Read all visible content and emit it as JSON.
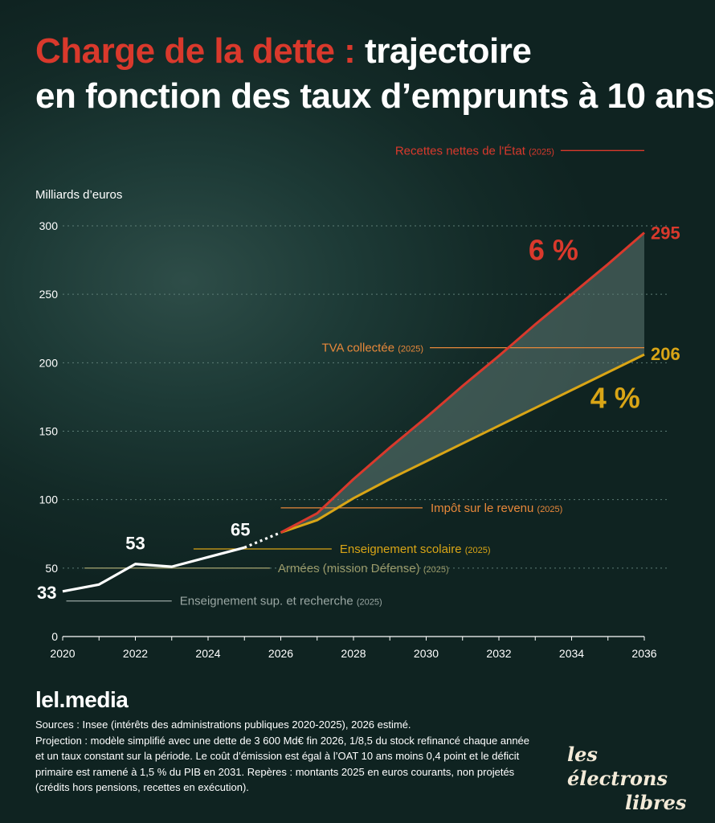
{
  "title": {
    "accent": "Charge de la dette :",
    "rest": "trajectoire",
    "line2": "en fonction des taux d’emprunts à 10 ans"
  },
  "colors": {
    "red": "#d9392c",
    "orange": "#e8883a",
    "yellow": "#d9a516",
    "white": "#ffffff",
    "grey": "#9aa7a3",
    "olive": "#9a9a6a",
    "band": "#5f7a74"
  },
  "chart_data": {
    "type": "line",
    "ylabel": "Milliards d’euros",
    "xlim": [
      2020,
      2036
    ],
    "ylim": [
      0,
      300
    ],
    "xticks": [
      "2020",
      "2022",
      "2024",
      "2026",
      "2028",
      "2030",
      "2032",
      "2034",
      "2036"
    ],
    "yticks": [
      "0",
      "50",
      "100",
      "150",
      "200",
      "250",
      "300"
    ],
    "grid": true,
    "series": [
      {
        "key": "historique",
        "x": [
          2020,
          2021,
          2022,
          2023,
          2024,
          2025
        ],
        "y": [
          33,
          38,
          53,
          51,
          58,
          65
        ]
      },
      {
        "key": "estime",
        "x": [
          2025,
          2026
        ],
        "y": [
          65,
          76
        ]
      },
      {
        "key": "taux6",
        "name": "6 %",
        "x": [
          2026,
          2027,
          2028,
          2029,
          2030,
          2031,
          2032,
          2033,
          2034,
          2035,
          2036
        ],
        "y": [
          76,
          90,
          115,
          138,
          160,
          183,
          205,
          228,
          250,
          272,
          295
        ]
      },
      {
        "key": "taux4",
        "name": "4 %",
        "x": [
          2026,
          2027,
          2028,
          2029,
          2030,
          2031,
          2032,
          2033,
          2034,
          2035,
          2036
        ],
        "y": [
          76,
          85,
          101,
          115,
          128,
          141,
          154,
          167,
          180,
          193,
          206
        ]
      }
    ],
    "point_labels": [
      {
        "x": 2020,
        "y": 33,
        "text": "33"
      },
      {
        "x": 2022,
        "y": 53,
        "text": "53"
      },
      {
        "x": 2025,
        "y": 65,
        "text": "65"
      },
      {
        "x": 2036,
        "y": 295,
        "text": "295"
      },
      {
        "x": 2036,
        "y": 206,
        "text": "206"
      }
    ],
    "series_labels": [
      {
        "text": "6 %",
        "x": 2033.5,
        "y": 275
      },
      {
        "text": "4 %",
        "x": 2035.2,
        "y": 167
      }
    ],
    "references": [
      {
        "name": "Recettes nettes de l'État",
        "suffix": "(2025)",
        "y": 355,
        "x_start": 2033.7,
        "x_end": 2036,
        "label_side": "left",
        "color": "red"
      },
      {
        "name": "TVA collectée",
        "suffix": "(2025)",
        "y": 211,
        "x_start": 2030.1,
        "x_end": 2036,
        "label_side": "left",
        "color": "orange"
      },
      {
        "name": "Impôt sur le revenu",
        "suffix": "(2025)",
        "y": 94,
        "x_start": 2026,
        "x_end": 2029.9,
        "label_side": "right",
        "color": "orange"
      },
      {
        "name": "Enseignement scolaire",
        "suffix": "(2025)",
        "y": 64,
        "x_start": 2023.6,
        "x_end": 2027.4,
        "label_side": "right",
        "color": "yellow"
      },
      {
        "name": "Armées (mission Défense)",
        "suffix": "(2025)",
        "y": 50,
        "x_start": 2020.6,
        "x_end": 2025.7,
        "label_side": "right",
        "color": "olive"
      },
      {
        "name": "Enseignement sup. et recherche",
        "suffix": "(2025)",
        "y": 26,
        "x_start": 2020.1,
        "x_end": 2023,
        "label_side": "right",
        "color": "grey"
      }
    ]
  },
  "footer": {
    "brand": "lel.media",
    "sources": [
      "Sources : Insee (intérêts des administrations publiques 2020-2025), 2026 estimé.",
      "Projection : modèle simplifié avec une dette de 3 600 Md€ fin 2026, 1/8,5 du stock refinancé chaque année et un taux constant sur la période. Le coût d’émission est égal à l’OAT 10 ans moins 0,4 point et le déficit primaire est ramené à 1,5 % du PIB en 2031. Repères : montants 2025 en euros courants, non projetés (crédits hors pensions, recettes en exécution)."
    ],
    "logo_line1": "les électrons",
    "logo_line2": "libres"
  }
}
